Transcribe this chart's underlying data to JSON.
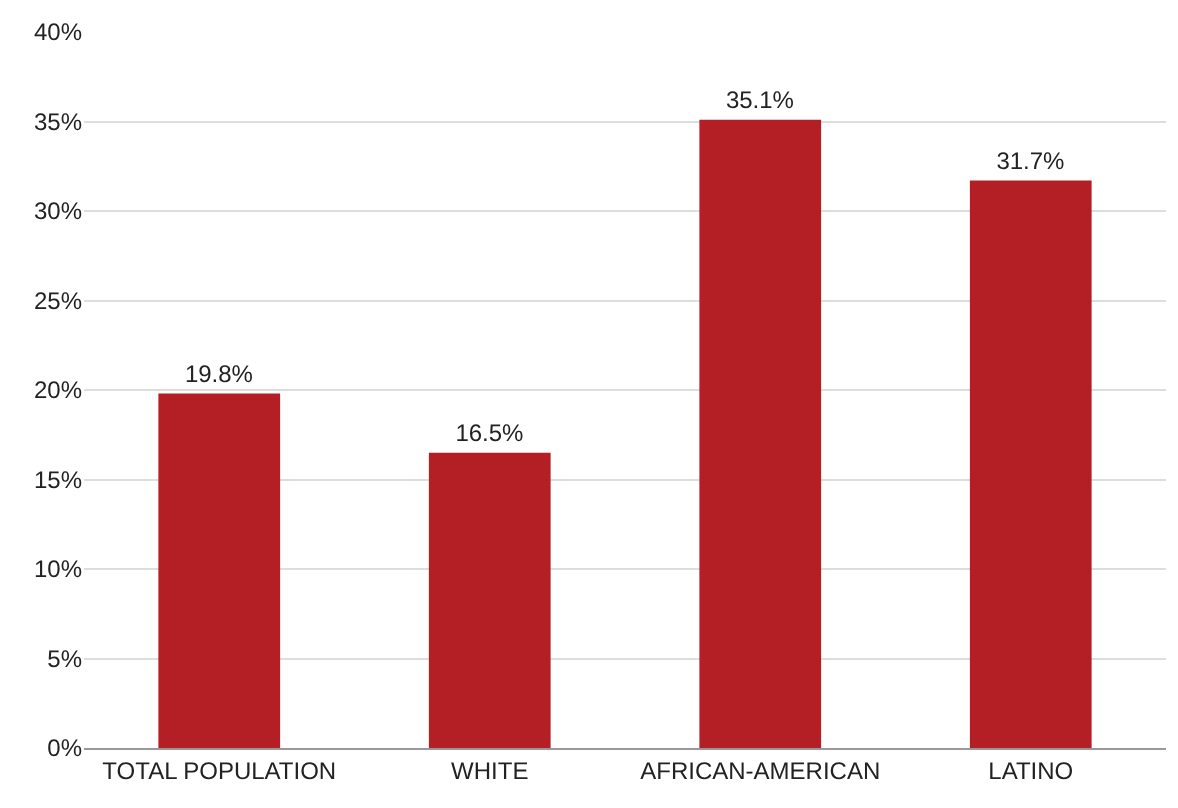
{
  "chart_data": {
    "type": "bar",
    "categories": [
      "TOTAL POPULATION",
      "WHITE",
      "AFRICAN-AMERICAN",
      "LATINO"
    ],
    "values": [
      19.8,
      16.5,
      35.1,
      31.7
    ],
    "color": "#b31f24",
    "value_labels": [
      "19.8%",
      "16.5%",
      "35.1%",
      "31.7%"
    ],
    "ylim": [
      0,
      40
    ],
    "yticks": [
      {
        "value": 0,
        "label": "0%"
      },
      {
        "value": 5,
        "label": "5%"
      },
      {
        "value": 10,
        "label": "10%"
      },
      {
        "value": 15,
        "label": "15%"
      },
      {
        "value": 20,
        "label": "20%"
      },
      {
        "value": 25,
        "label": "25%"
      },
      {
        "value": 30,
        "label": "30%"
      },
      {
        "value": 35,
        "label": "35%"
      },
      {
        "value": 40,
        "label": "40%"
      }
    ],
    "grid": "y"
  }
}
